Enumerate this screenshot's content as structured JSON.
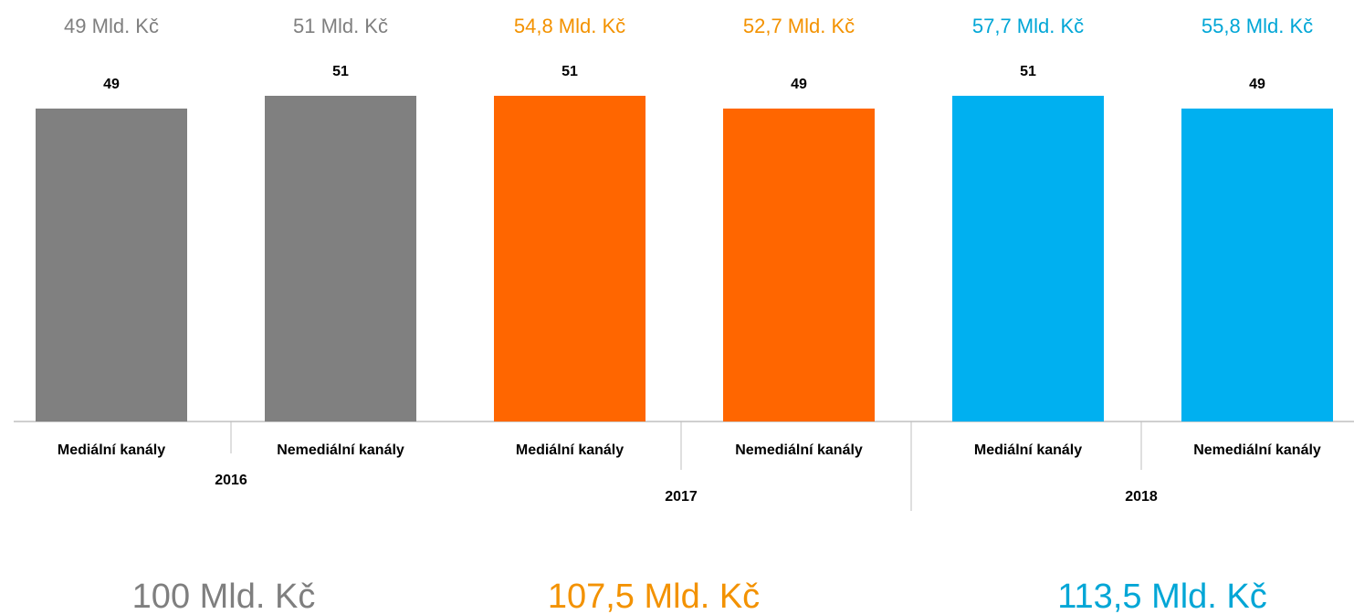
{
  "chart_data": {
    "type": "bar",
    "categories": [
      "Mediální kanály",
      "Nemediální kanály",
      "Mediální kanály",
      "Nemediální kanály",
      "Mediální kanály",
      "Nemediální kanály"
    ],
    "values": [
      49,
      51,
      51,
      49,
      51,
      49
    ],
    "colors": [
      "#808080",
      "#808080",
      "#ff6600",
      "#ff6600",
      "#00b0f0",
      "#00b0f0"
    ],
    "amount_labels": [
      "49 Mld. Kč",
      "51 Mld. Kč",
      "54,8 Mld. Kč",
      "52,7 Mld. Kč",
      "57,7 Mld. Kč",
      "55,8 Mld. Kč"
    ],
    "amount_colors": [
      "#7f7f7f",
      "#7f7f7f",
      "#f39200",
      "#f39200",
      "#00a6d6",
      "#00a6d6"
    ],
    "groups": [
      "2016",
      "2017",
      "2018"
    ],
    "totals": [
      "100 Mld. Kč",
      "107,5 Mld. Kč",
      "113,5 Mld. Kč"
    ],
    "total_colors": [
      "#7f7f7f",
      "#f39200",
      "#00a6d6"
    ]
  }
}
